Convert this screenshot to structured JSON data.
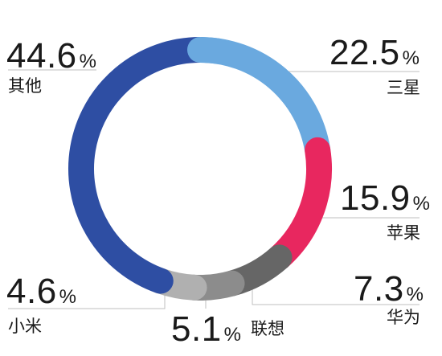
{
  "chart_data": {
    "type": "pie",
    "variant": "donut",
    "slices": [
      {
        "label": "三星",
        "value": 22.5,
        "display": "22.5",
        "color": "#6aa9df"
      },
      {
        "label": "苹果",
        "value": 15.9,
        "display": "15.9",
        "color": "#e8275f"
      },
      {
        "label": "华为",
        "value": 7.3,
        "display": "7.3",
        "color": "#666666"
      },
      {
        "label": "联想",
        "value": 5.1,
        "display": "5.1",
        "color": "#8c8c8c"
      },
      {
        "label": "小米",
        "value": 4.6,
        "display": "4.6",
        "color": "#b0b0b0"
      },
      {
        "label": "其他",
        "value": 44.6,
        "display": "44.6",
        "color": "#2e4ea3"
      }
    ],
    "value_suffix": "%",
    "start_angle_deg": 0,
    "direction": "clockwise",
    "leader_line_color": "#bfbfbf"
  }
}
